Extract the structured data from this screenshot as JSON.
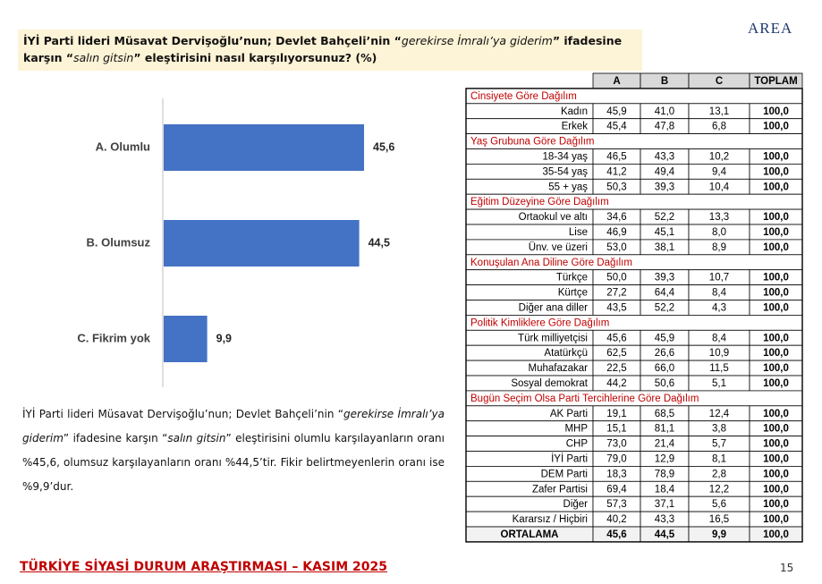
{
  "header": {
    "title": [
      {
        "text": "İYİ Parti lideri Müsavat Dervişoğlu’nun; Devlet Bahçeli’nin “",
        "italic": false
      },
      {
        "text": "gerekirse İmralı’ya giderim",
        "italic": true
      },
      {
        "text": "” ifadesine karşın “",
        "italic": false
      },
      {
        "text": "salın gitsin",
        "italic": true
      },
      {
        "text": "” eleştirisini nasıl karşılıyorsunuz? (%)",
        "italic": false
      }
    ],
    "logo": "AREA"
  },
  "chart_data": {
    "type": "bar",
    "orientation": "horizontal",
    "color": "#4472c4",
    "categories": [
      "A. Olumlu",
      "B. Olumsuz",
      "C. Fikrim yok"
    ],
    "values": [
      45.6,
      44.5,
      9.9
    ],
    "value_labels": [
      "45,6",
      "44,5",
      "9,9"
    ]
  },
  "paragraph": [
    {
      "text": "İYİ Parti lideri Müsavat Dervişoğlu’nun; Devlet Bahçeli’nin “",
      "italic": false
    },
    {
      "text": "gerekirse İmralı’ya giderim",
      "italic": true
    },
    {
      "text": "” ifadesine karşın “",
      "italic": false
    },
    {
      "text": "salın gitsin",
      "italic": true
    },
    {
      "text": "” eleştirisini olumlu karşılayanların oranı %45,6, olumsuz karşılayanların oranı %44,5’tir. Fikir belirtmeyenlerin oranı ise %9,9’dur.",
      "italic": false
    }
  ],
  "table": {
    "columns": [
      "A",
      "B",
      "C",
      "TOPLAM"
    ],
    "groups": [
      {
        "title": "Cinsiyete Göre Dağılım",
        "rows": [
          [
            "Kadın",
            "45,9",
            "41,0",
            "13,1",
            "100,0"
          ],
          [
            "Erkek",
            "45,4",
            "47,8",
            "6,8",
            "100,0"
          ]
        ]
      },
      {
        "title": "Yaş Grubuna Göre Dağılım",
        "rows": [
          [
            "18-34 yaş",
            "46,5",
            "43,3",
            "10,2",
            "100,0"
          ],
          [
            "35-54 yaş",
            "41,2",
            "49,4",
            "9,4",
            "100,0"
          ],
          [
            "55 + yaş",
            "50,3",
            "39,3",
            "10,4",
            "100,0"
          ]
        ]
      },
      {
        "title": "Eğitim Düzeyine Göre Dağılım",
        "rows": [
          [
            "Ortaokul ve altı",
            "34,6",
            "52,2",
            "13,3",
            "100,0"
          ],
          [
            "Lise",
            "46,9",
            "45,1",
            "8,0",
            "100,0"
          ],
          [
            "Ünv. ve üzeri",
            "53,0",
            "38,1",
            "8,9",
            "100,0"
          ]
        ]
      },
      {
        "title": "Konuşulan Ana Diline Göre Dağılım",
        "rows": [
          [
            "Türkçe",
            "50,0",
            "39,3",
            "10,7",
            "100,0"
          ],
          [
            "Kürtçe",
            "27,2",
            "64,4",
            "8,4",
            "100,0"
          ],
          [
            "Diğer ana diller",
            "43,5",
            "52,2",
            "4,3",
            "100,0"
          ]
        ]
      },
      {
        "title": "Politik Kimliklere Göre Dağılım",
        "rows": [
          [
            "Türk milliyetçisi",
            "45,6",
            "45,9",
            "8,4",
            "100,0"
          ],
          [
            "Atatürkçü",
            "62,5",
            "26,6",
            "10,9",
            "100,0"
          ],
          [
            "Muhafazakar",
            "22,5",
            "66,0",
            "11,5",
            "100,0"
          ],
          [
            "Sosyal demokrat",
            "44,2",
            "50,6",
            "5,1",
            "100,0"
          ]
        ]
      },
      {
        "title": "Bugün Seçim Olsa Parti Tercihlerine Göre Dağılım",
        "rows": [
          [
            "AK Parti",
            "19,1",
            "68,5",
            "12,4",
            "100,0"
          ],
          [
            "MHP",
            "15,1",
            "81,1",
            "3,8",
            "100,0"
          ],
          [
            "CHP",
            "73,0",
            "21,4",
            "5,7",
            "100,0"
          ],
          [
            "İYİ Parti",
            "79,0",
            "12,9",
            "8,1",
            "100,0"
          ],
          [
            "DEM Parti",
            "18,3",
            "78,9",
            "2,8",
            "100,0"
          ],
          [
            "Zafer Partisi",
            "69,4",
            "18,4",
            "12,2",
            "100,0"
          ],
          [
            "Diğer",
            "57,3",
            "37,1",
            "5,6",
            "100,0"
          ],
          [
            "Kararsız / Hiçbiri",
            "40,2",
            "43,3",
            "16,5",
            "100,0"
          ]
        ]
      }
    ],
    "total": [
      "ORTALAMA",
      "45,6",
      "44,5",
      "9,9",
      "100,0"
    ]
  },
  "footer": {
    "title": "TÜRKİYE SİYASİ DURUM ARAŞTIRMASI – KASIM 2025",
    "page": "15"
  }
}
